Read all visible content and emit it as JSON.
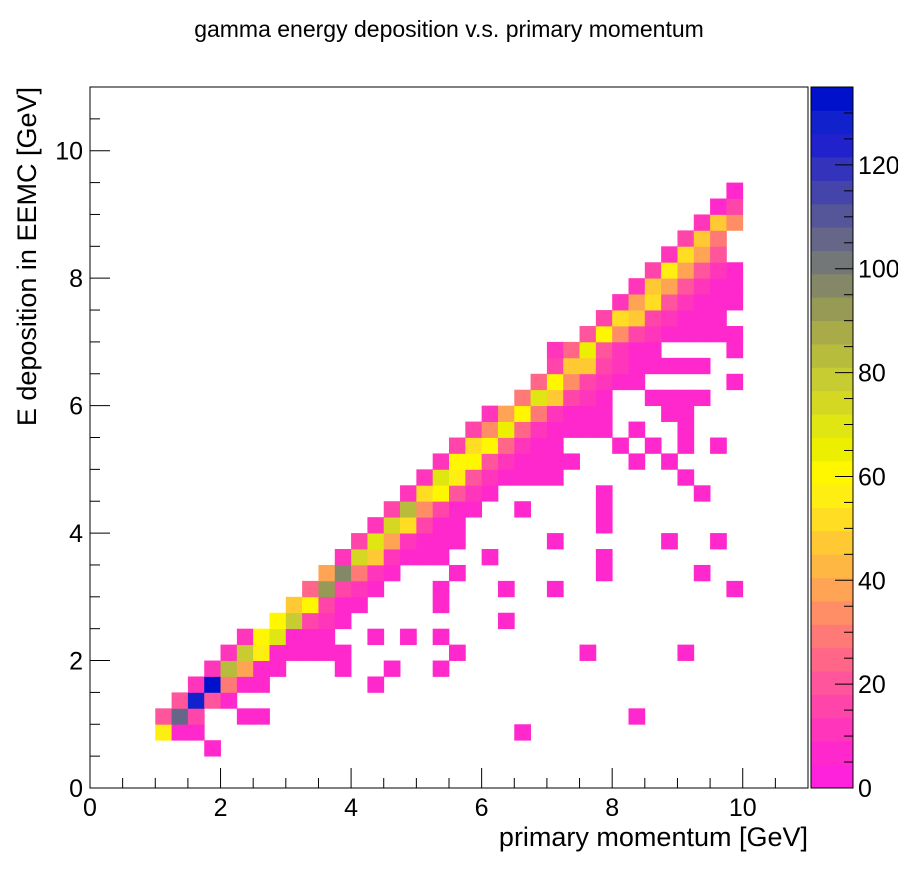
{
  "chart_data": {
    "type": "heatmap",
    "title": "gamma energy deposition v.s. primary momentum",
    "xlabel": "primary momentum [GeV]",
    "ylabel": "E deposition in EEMC [GeV]",
    "xlim": [
      0,
      11
    ],
    "ylim": [
      0,
      11
    ],
    "zlim": [
      0,
      135
    ],
    "bin_size": [
      0.25,
      0.25
    ],
    "xticks": [
      0,
      2,
      4,
      6,
      8,
      10
    ],
    "xtick_labels": [
      "0",
      "2",
      "4",
      "6",
      "8",
      "10"
    ],
    "yticks": [
      0,
      2,
      4,
      6,
      8,
      10
    ],
    "ytick_labels": [
      "0",
      "2",
      "4",
      "6",
      "8",
      "10"
    ],
    "colorbar_ticks": [
      0,
      20,
      40,
      60,
      80,
      100,
      120
    ],
    "colorbar_tick_labels": [
      "0",
      "20",
      "40",
      "60",
      "80",
      "100",
      "120"
    ],
    "palette": [
      "#ff22dd",
      "#ff28cc",
      "#ff36bb",
      "#ff44aa",
      "#ff559c",
      "#ff6688",
      "#ff7a77",
      "#ff8e66",
      "#ffa455",
      "#ffb744",
      "#ffc933",
      "#ffdd22",
      "#ffee11",
      "#fff700",
      "#ecf000",
      "#dfe611",
      "#d4d822",
      "#c7cc33",
      "#b8bc3c",
      "#a8ab48",
      "#969a55",
      "#858866",
      "#747777",
      "#666688",
      "#555599",
      "#4444aa",
      "#3333bb",
      "#2222cc",
      "#1122cc",
      "#0011cc"
    ],
    "bins": [
      [
        1.125,
        0.875,
        55
      ],
      [
        1.375,
        0.875,
        5
      ],
      [
        1.625,
        0.875,
        5
      ],
      [
        1.875,
        0.625,
        5
      ],
      [
        1.125,
        1.125,
        20
      ],
      [
        1.375,
        1.125,
        105
      ],
      [
        1.625,
        1.125,
        15
      ],
      [
        2.375,
        1.125,
        5
      ],
      [
        2.625,
        1.125,
        5
      ],
      [
        1.375,
        1.375,
        20
      ],
      [
        1.625,
        1.375,
        130
      ],
      [
        1.875,
        1.375,
        20
      ],
      [
        2.125,
        1.375,
        5
      ],
      [
        1.625,
        1.625,
        10
      ],
      [
        1.875,
        1.625,
        135
      ],
      [
        2.125,
        1.625,
        30
      ],
      [
        2.375,
        1.625,
        5
      ],
      [
        2.625,
        1.625,
        5
      ],
      [
        1.875,
        1.875,
        10
      ],
      [
        2.125,
        1.875,
        85
      ],
      [
        2.375,
        1.875,
        40
      ],
      [
        2.625,
        1.875,
        5
      ],
      [
        2.875,
        1.875,
        5
      ],
      [
        2.125,
        2.125,
        10
      ],
      [
        2.375,
        2.125,
        80
      ],
      [
        2.625,
        2.125,
        55
      ],
      [
        2.875,
        2.125,
        5
      ],
      [
        3.125,
        2.125,
        5
      ],
      [
        3.375,
        2.125,
        5
      ],
      [
        3.625,
        2.125,
        5
      ],
      [
        3.875,
        2.125,
        5
      ],
      [
        2.375,
        2.375,
        10
      ],
      [
        2.625,
        2.375,
        60
      ],
      [
        2.875,
        2.375,
        70
      ],
      [
        3.125,
        2.375,
        5
      ],
      [
        3.375,
        2.375,
        5
      ],
      [
        3.625,
        2.375,
        5
      ],
      [
        2.875,
        2.625,
        60
      ],
      [
        3.125,
        2.625,
        80
      ],
      [
        3.375,
        2.625,
        15
      ],
      [
        3.625,
        2.625,
        10
      ],
      [
        3.875,
        2.625,
        5
      ],
      [
        3.125,
        2.875,
        45
      ],
      [
        3.375,
        2.875,
        60
      ],
      [
        3.625,
        2.875,
        15
      ],
      [
        3.875,
        2.875,
        5
      ],
      [
        4.125,
        2.875,
        5
      ],
      [
        3.375,
        3.125,
        25
      ],
      [
        3.625,
        3.125,
        90
      ],
      [
        3.875,
        3.125,
        15
      ],
      [
        4.125,
        3.125,
        10
      ],
      [
        4.375,
        3.125,
        5
      ],
      [
        3.625,
        3.375,
        40
      ],
      [
        3.875,
        3.375,
        95
      ],
      [
        4.125,
        3.375,
        30
      ],
      [
        4.375,
        3.375,
        10
      ],
      [
        4.625,
        3.375,
        5
      ],
      [
        3.875,
        3.625,
        10
      ],
      [
        4.125,
        3.625,
        75
      ],
      [
        4.375,
        3.625,
        45
      ],
      [
        4.625,
        3.625,
        10
      ],
      [
        4.875,
        3.625,
        5
      ],
      [
        5.125,
        3.625,
        5
      ],
      [
        5.375,
        3.625,
        5
      ],
      [
        4.125,
        3.875,
        15
      ],
      [
        4.375,
        3.875,
        70
      ],
      [
        4.625,
        3.875,
        40
      ],
      [
        4.875,
        3.875,
        10
      ],
      [
        5.125,
        3.875,
        5
      ],
      [
        5.375,
        3.875,
        5
      ],
      [
        5.625,
        3.875,
        5
      ],
      [
        4.375,
        4.125,
        10
      ],
      [
        4.625,
        4.125,
        75
      ],
      [
        4.875,
        4.125,
        50
      ],
      [
        5.125,
        4.125,
        15
      ],
      [
        5.375,
        4.125,
        5
      ],
      [
        5.625,
        4.125,
        5
      ],
      [
        4.625,
        4.375,
        15
      ],
      [
        4.875,
        4.375,
        85
      ],
      [
        5.125,
        4.375,
        35
      ],
      [
        5.375,
        4.375,
        15
      ],
      [
        5.625,
        4.375,
        5
      ],
      [
        5.875,
        4.375,
        5
      ],
      [
        4.875,
        4.625,
        10
      ],
      [
        5.125,
        4.625,
        50
      ],
      [
        5.375,
        4.625,
        60
      ],
      [
        5.625,
        4.625,
        20
      ],
      [
        5.875,
        4.625,
        10
      ],
      [
        6.125,
        4.625,
        5
      ],
      [
        5.125,
        4.875,
        10
      ],
      [
        5.375,
        4.875,
        70
      ],
      [
        5.625,
        4.875,
        55
      ],
      [
        5.875,
        4.875,
        20
      ],
      [
        6.125,
        4.875,
        10
      ],
      [
        6.375,
        4.875,
        5
      ],
      [
        6.625,
        4.875,
        5
      ],
      [
        6.875,
        4.875,
        5
      ],
      [
        7.125,
        4.875,
        5
      ],
      [
        5.375,
        5.125,
        10
      ],
      [
        5.625,
        5.125,
        60
      ],
      [
        5.875,
        5.125,
        60
      ],
      [
        6.125,
        5.125,
        20
      ],
      [
        6.375,
        5.125,
        10
      ],
      [
        6.625,
        5.125,
        5
      ],
      [
        6.875,
        5.125,
        5
      ],
      [
        7.125,
        5.125,
        5
      ],
      [
        7.375,
        5.125,
        5
      ],
      [
        5.625,
        5.375,
        15
      ],
      [
        5.875,
        5.375,
        50
      ],
      [
        6.125,
        5.375,
        60
      ],
      [
        6.375,
        5.375,
        25
      ],
      [
        6.625,
        5.375,
        10
      ],
      [
        6.875,
        5.375,
        5
      ],
      [
        7.125,
        5.375,
        5
      ],
      [
        5.875,
        5.625,
        15
      ],
      [
        6.125,
        5.625,
        35
      ],
      [
        6.375,
        5.625,
        65
      ],
      [
        6.625,
        5.625,
        25
      ],
      [
        6.875,
        5.625,
        10
      ],
      [
        7.125,
        5.625,
        5
      ],
      [
        7.375,
        5.625,
        5
      ],
      [
        7.625,
        5.625,
        5
      ],
      [
        7.875,
        5.625,
        5
      ],
      [
        6.125,
        5.875,
        10
      ],
      [
        6.375,
        5.875,
        40
      ],
      [
        6.625,
        5.875,
        60
      ],
      [
        6.875,
        5.875,
        30
      ],
      [
        7.125,
        5.875,
        10
      ],
      [
        7.375,
        5.875,
        5
      ],
      [
        7.625,
        5.875,
        5
      ],
      [
        7.875,
        5.875,
        5
      ],
      [
        6.625,
        6.125,
        30
      ],
      [
        6.875,
        6.125,
        70
      ],
      [
        7.125,
        6.125,
        45
      ],
      [
        7.375,
        6.125,
        15
      ],
      [
        7.625,
        6.125,
        10
      ],
      [
        7.875,
        6.125,
        5
      ],
      [
        6.875,
        6.375,
        25
      ],
      [
        7.125,
        6.375,
        60
      ],
      [
        7.375,
        6.375,
        35
      ],
      [
        7.625,
        6.375,
        15
      ],
      [
        7.875,
        6.375,
        10
      ],
      [
        8.125,
        6.375,
        5
      ],
      [
        8.375,
        6.375,
        5
      ],
      [
        7.125,
        6.625,
        15
      ],
      [
        7.375,
        6.625,
        45
      ],
      [
        7.625,
        6.625,
        45
      ],
      [
        7.875,
        6.625,
        15
      ],
      [
        8.125,
        6.625,
        10
      ],
      [
        8.375,
        6.625,
        5
      ],
      [
        8.625,
        6.625,
        5
      ],
      [
        8.875,
        6.625,
        5
      ],
      [
        7.125,
        6.875,
        10
      ],
      [
        7.375,
        6.875,
        25
      ],
      [
        7.625,
        6.875,
        65
      ],
      [
        7.875,
        6.875,
        20
      ],
      [
        8.125,
        6.875,
        10
      ],
      [
        8.375,
        6.875,
        5
      ],
      [
        8.625,
        6.875,
        5
      ],
      [
        7.625,
        7.125,
        20
      ],
      [
        7.875,
        7.125,
        60
      ],
      [
        8.125,
        7.125,
        35
      ],
      [
        8.375,
        7.125,
        15
      ],
      [
        8.625,
        7.125,
        10
      ],
      [
        8.875,
        7.125,
        5
      ],
      [
        9.125,
        7.125,
        5
      ],
      [
        9.375,
        7.125,
        5
      ],
      [
        7.875,
        7.375,
        15
      ],
      [
        8.125,
        7.375,
        50
      ],
      [
        8.375,
        7.375,
        45
      ],
      [
        8.625,
        7.375,
        15
      ],
      [
        8.875,
        7.375,
        10
      ],
      [
        9.125,
        7.375,
        5
      ],
      [
        9.375,
        7.375,
        5
      ],
      [
        8.125,
        7.625,
        10
      ],
      [
        8.375,
        7.625,
        40
      ],
      [
        8.625,
        7.625,
        50
      ],
      [
        8.875,
        7.625,
        20
      ],
      [
        9.125,
        7.625,
        10
      ],
      [
        9.375,
        7.625,
        5
      ],
      [
        9.625,
        7.625,
        5
      ],
      [
        8.375,
        7.875,
        10
      ],
      [
        8.625,
        7.875,
        45
      ],
      [
        8.875,
        7.875,
        40
      ],
      [
        9.125,
        7.875,
        20
      ],
      [
        9.375,
        7.875,
        10
      ],
      [
        9.625,
        7.875,
        5
      ],
      [
        8.625,
        8.125,
        15
      ],
      [
        8.875,
        8.125,
        55
      ],
      [
        9.125,
        8.125,
        40
      ],
      [
        9.375,
        8.125,
        20
      ],
      [
        9.625,
        8.125,
        10
      ],
      [
        8.875,
        8.375,
        10
      ],
      [
        9.125,
        8.375,
        50
      ],
      [
        9.375,
        8.375,
        40
      ],
      [
        9.625,
        8.375,
        20
      ],
      [
        9.125,
        8.625,
        15
      ],
      [
        9.375,
        8.625,
        45
      ],
      [
        9.625,
        8.625,
        30
      ],
      [
        9.375,
        8.875,
        10
      ],
      [
        9.625,
        8.875,
        45
      ],
      [
        9.875,
        8.875,
        35
      ],
      [
        9.625,
        9.125,
        5
      ],
      [
        9.875,
        9.125,
        15
      ],
      [
        9.875,
        9.375,
        5
      ],
      [
        6.625,
        0.875,
        5
      ],
      [
        8.375,
        1.125,
        5
      ],
      [
        4.375,
        1.625,
        5
      ],
      [
        3.875,
        1.875,
        5
      ],
      [
        4.625,
        1.875,
        5
      ],
      [
        5.375,
        1.875,
        5
      ],
      [
        5.625,
        2.125,
        5
      ],
      [
        7.625,
        2.125,
        5
      ],
      [
        9.125,
        2.125,
        5
      ],
      [
        4.375,
        2.375,
        5
      ],
      [
        4.875,
        2.375,
        5
      ],
      [
        5.375,
        2.375,
        5
      ],
      [
        6.375,
        2.625,
        5
      ],
      [
        5.375,
        2.875,
        5
      ],
      [
        5.375,
        3.125,
        5
      ],
      [
        6.375,
        3.125,
        5
      ],
      [
        7.125,
        3.125,
        5
      ],
      [
        9.875,
        3.125,
        5
      ],
      [
        5.625,
        3.375,
        5
      ],
      [
        7.875,
        3.375,
        5
      ],
      [
        9.375,
        3.375,
        5
      ],
      [
        6.125,
        3.625,
        5
      ],
      [
        7.875,
        3.625,
        5
      ],
      [
        7.125,
        3.875,
        5
      ],
      [
        8.875,
        3.875,
        5
      ],
      [
        9.625,
        3.875,
        5
      ],
      [
        7.875,
        4.125,
        5
      ],
      [
        6.625,
        4.375,
        5
      ],
      [
        7.875,
        4.375,
        5
      ],
      [
        7.875,
        4.625,
        5
      ],
      [
        9.375,
        4.625,
        5
      ],
      [
        9.125,
        4.875,
        5
      ],
      [
        8.375,
        5.125,
        5
      ],
      [
        8.875,
        5.125,
        5
      ],
      [
        8.125,
        5.375,
        5
      ],
      [
        8.625,
        5.375,
        5
      ],
      [
        9.125,
        5.375,
        5
      ],
      [
        9.625,
        5.375,
        5
      ],
      [
        8.375,
        5.625,
        5
      ],
      [
        9.125,
        5.625,
        5
      ],
      [
        8.875,
        5.875,
        5
      ],
      [
        9.125,
        5.875,
        5
      ],
      [
        8.625,
        6.125,
        5
      ],
      [
        8.875,
        6.125,
        5
      ],
      [
        9.125,
        6.125,
        5
      ],
      [
        9.375,
        6.125,
        5
      ],
      [
        9.875,
        6.375,
        5
      ],
      [
        9.125,
        6.625,
        5
      ],
      [
        9.375,
        6.625,
        5
      ],
      [
        9.875,
        6.875,
        5
      ],
      [
        9.625,
        7.125,
        5
      ],
      [
        9.875,
        7.125,
        5
      ],
      [
        9.625,
        7.375,
        5
      ],
      [
        9.875,
        7.625,
        5
      ],
      [
        9.875,
        7.875,
        5
      ],
      [
        9.875,
        8.125,
        5
      ]
    ]
  }
}
